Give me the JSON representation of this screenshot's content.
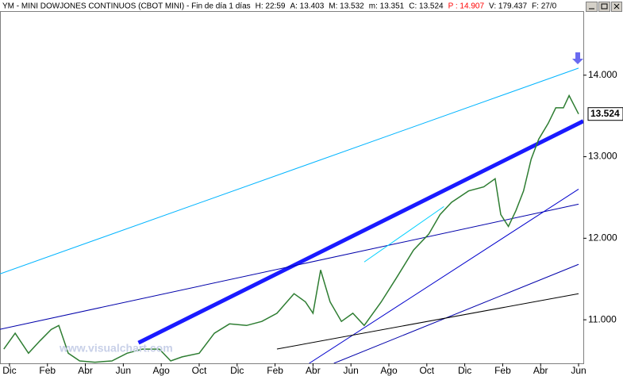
{
  "chart_data": {
    "type": "line",
    "header": [
      {
        "text": "YM - MINI DOWJONES CONTINUOS (CBOT MINI) - Fin de día 1 días",
        "color": "#000000"
      },
      {
        "text": "H: 22:59",
        "color": "#000000"
      },
      {
        "text": "A: 13.403",
        "color": "#000000"
      },
      {
        "text": "M: 13.532",
        "color": "#000000"
      },
      {
        "text": "m: 13.351",
        "color": "#000000"
      },
      {
        "text": "C: 13.524",
        "color": "#000000"
      },
      {
        "text": "P : 14.907",
        "color": "#ff0000"
      },
      {
        "text": "V: 179.437",
        "color": "#000000"
      },
      {
        "text": "F: 27/0",
        "color": "#000000"
      }
    ],
    "watermark": "www.visualchart.com",
    "last_price": {
      "value": 13524,
      "label": "13.524"
    },
    "xlim": [
      -0.5,
      30.25
    ],
    "ylim": [
      10466,
      14786
    ],
    "xticks": [
      {
        "value": 0,
        "label": "Dic"
      },
      {
        "value": 2,
        "label": "Feb"
      },
      {
        "value": 4,
        "label": "Abr"
      },
      {
        "value": 6,
        "label": "Jun"
      },
      {
        "value": 8,
        "label": "Ago"
      },
      {
        "value": 10,
        "label": "Oct"
      },
      {
        "value": 12,
        "label": "Dic"
      },
      {
        "value": 14,
        "label": "Feb"
      },
      {
        "value": 16,
        "label": "Abr"
      },
      {
        "value": 18,
        "label": "Jun"
      },
      {
        "value": 20,
        "label": "Ago"
      },
      {
        "value": 22,
        "label": "Oct"
      },
      {
        "value": 24,
        "label": "Dic"
      },
      {
        "value": 26,
        "label": "Feb"
      },
      {
        "value": 28,
        "label": "Abr"
      },
      {
        "value": 30,
        "label": "Jun"
      }
    ],
    "yticks": [
      {
        "value": 11000,
        "label": "11.000"
      },
      {
        "value": 12000,
        "label": "12.000"
      },
      {
        "value": 13000,
        "label": "13.000"
      },
      {
        "value": 14000,
        "label": "14.000"
      }
    ],
    "series": [
      {
        "color": "#2e7d32",
        "x": [
          -0.3,
          0.3,
          1.0,
          1.6,
          2.2,
          2.6,
          3.1,
          3.7,
          4.5,
          5.4,
          6.2,
          7.0,
          7.9,
          8.5,
          9.1,
          10.0,
          10.8,
          11.6,
          12.5,
          13.3,
          14.1,
          15.0,
          15.6,
          16.0,
          16.4,
          16.9,
          17.5,
          18.1,
          18.7,
          19.6,
          20.4,
          21.3,
          22.1,
          22.7,
          23.3,
          24.2,
          25.0,
          25.6,
          25.9,
          26.3,
          26.7,
          27.1,
          27.5,
          27.9,
          28.4,
          28.8,
          29.2,
          29.5,
          30.0
        ],
        "values": [
          10640,
          10835,
          10590,
          10740,
          10880,
          10930,
          10590,
          10495,
          10480,
          10495,
          10590,
          10640,
          10640,
          10495,
          10545,
          10590,
          10835,
          10950,
          10930,
          10980,
          11080,
          11320,
          11220,
          11080,
          11610,
          11220,
          10980,
          11080,
          10930,
          11220,
          11515,
          11855,
          12050,
          12290,
          12440,
          12580,
          12630,
          12730,
          12290,
          12145,
          12340,
          12580,
          12970,
          13215,
          13410,
          13600,
          13600,
          13750,
          13524
        ]
      }
    ],
    "trendlines": [
      {
        "color": "#00b4ff",
        "width": 1,
        "x": [
          -0.5,
          30.0
        ],
        "y": [
          11563,
          14087
        ]
      },
      {
        "color": "#1a1aff",
        "width": 5,
        "x": [
          6.8,
          30.25
        ],
        "y": [
          10718,
          13437
        ]
      },
      {
        "color": "#0000aa",
        "width": 1,
        "x": [
          -0.5,
          30.0
        ],
        "y": [
          10883,
          12418
        ]
      },
      {
        "color": "#0000cc",
        "width": 1,
        "x": [
          15.8,
          30.0
        ],
        "y": [
          10466,
          12602
        ]
      },
      {
        "color": "#0000aa",
        "width": 1,
        "x": [
          17.1,
          30.0
        ],
        "y": [
          10466,
          11680
        ]
      },
      {
        "color": "#000000",
        "width": 1,
        "x": [
          14.1,
          30.0
        ],
        "y": [
          10641,
          11320
        ]
      },
      {
        "color": "#00d0ff",
        "width": 1,
        "x": [
          18.7,
          22.9
        ],
        "y": [
          11709,
          12389
        ]
      }
    ]
  }
}
